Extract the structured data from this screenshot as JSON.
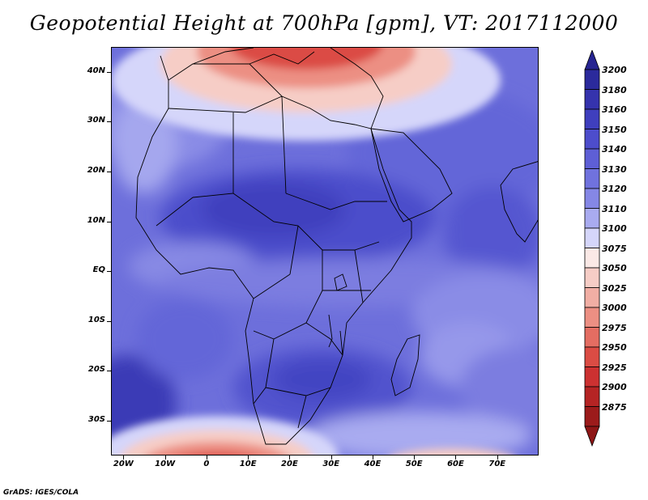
{
  "title": "Geopotential Height at 700hPa [gpm], VT: 2017112000",
  "credit": "GrADS: IGES/COLA",
  "map": {
    "lon_range": [
      -23,
      80
    ],
    "lat_range": [
      -37,
      45
    ],
    "lat_ticks": [
      {
        "value": 40,
        "label": "40N"
      },
      {
        "value": 30,
        "label": "30N"
      },
      {
        "value": 20,
        "label": "20N"
      },
      {
        "value": 10,
        "label": "10N"
      },
      {
        "value": 0,
        "label": "EQ"
      },
      {
        "value": -10,
        "label": "10S"
      },
      {
        "value": -20,
        "label": "20S"
      },
      {
        "value": -30,
        "label": "30S"
      }
    ],
    "lon_ticks": [
      {
        "value": -20,
        "label": "20W"
      },
      {
        "value": -10,
        "label": "10W"
      },
      {
        "value": 0,
        "label": "0"
      },
      {
        "value": 10,
        "label": "10E"
      },
      {
        "value": 20,
        "label": "20E"
      },
      {
        "value": 30,
        "label": "30E"
      },
      {
        "value": 40,
        "label": "40E"
      },
      {
        "value": 50,
        "label": "50E"
      },
      {
        "value": 60,
        "label": "60E"
      },
      {
        "value": 70,
        "label": "70E"
      }
    ]
  },
  "colorbar": {
    "levels": [
      {
        "label": "3200",
        "color": "#2b2a9c"
      },
      {
        "label": "3180",
        "color": "#3533ad"
      },
      {
        "label": "3160",
        "color": "#3f3fbe"
      },
      {
        "label": "3150",
        "color": "#4d4dcc"
      },
      {
        "label": "3140",
        "color": "#5e5fd6"
      },
      {
        "label": "3130",
        "color": "#7072de"
      },
      {
        "label": "3120",
        "color": "#8587e6"
      },
      {
        "label": "3110",
        "color": "#a9abf0"
      },
      {
        "label": "3100",
        "color": "#d5d6fa"
      },
      {
        "label": "3075",
        "color": "#fbe9e6"
      },
      {
        "label": "3050",
        "color": "#f6cdc6"
      },
      {
        "label": "3025",
        "color": "#f1aea4"
      },
      {
        "label": "3000",
        "color": "#ec8f83"
      },
      {
        "label": "2975",
        "color": "#e46d62"
      },
      {
        "label": "2950",
        "color": "#db4c44"
      },
      {
        "label": "2925",
        "color": "#cc3131"
      },
      {
        "label": "2900",
        "color": "#b52424"
      },
      {
        "label": "2875",
        "color": "#9c1b1b"
      }
    ],
    "top_cap_color": "#262491",
    "bottom_cap_color": "#8e1616"
  }
}
